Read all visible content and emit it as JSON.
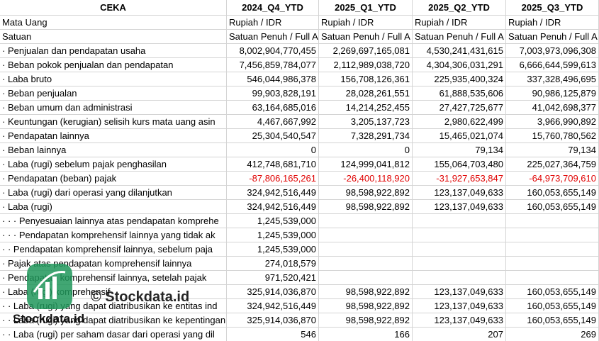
{
  "table": {
    "header": [
      "CEKA",
      "2024_Q4_YTD",
      "2025_Q1_YTD",
      "2025_Q2_YTD",
      "2025_Q3_YTD"
    ],
    "rows": [
      [
        "Mata Uang",
        "Rupiah / IDR",
        "Rupiah / IDR",
        "Rupiah / IDR",
        "Rupiah / IDR"
      ],
      [
        "Satuan",
        "Satuan Penuh / Full A",
        "Satuan Penuh / Full A",
        "Satuan Penuh / Full A",
        "Satuan Penuh / Full A"
      ],
      [
        "· Penjualan dan pendapatan usaha",
        "8,002,904,770,455",
        "2,269,697,165,081",
        "4,530,241,431,615",
        "7,003,973,096,308"
      ],
      [
        "· Beban pokok penjualan dan pendapatan",
        "7,456,859,784,077",
        "2,112,989,038,720",
        "4,304,306,031,291",
        "6,666,644,599,613"
      ],
      [
        "· Laba bruto",
        "546,044,986,378",
        "156,708,126,361",
        "225,935,400,324",
        "337,328,496,695"
      ],
      [
        "· Beban penjualan",
        "99,903,828,191",
        "28,028,261,551",
        "61,888,535,606",
        "90,986,125,879"
      ],
      [
        "· Beban umum dan administrasi",
        "63,164,685,016",
        "14,214,252,455",
        "27,427,725,677",
        "41,042,698,377"
      ],
      [
        "· Keuntungan (kerugian) selisih kurs mata uang asin",
        "4,467,667,992",
        "3,205,137,723",
        "2,980,622,499",
        "3,966,990,892"
      ],
      [
        "· Pendapatan lainnya",
        "25,304,540,547",
        "7,328,291,734",
        "15,465,021,074",
        "15,760,780,562"
      ],
      [
        "· Beban lainnya",
        "0",
        "0",
        "79,134",
        "79,134"
      ],
      [
        "· Laba (rugi) sebelum pajak penghasilan",
        "412,748,681,710",
        "124,999,041,812",
        "155,064,703,480",
        "225,027,364,759"
      ],
      [
        "· Pendapatan (beban) pajak",
        "-87,806,165,261",
        "-26,400,118,920",
        "-31,927,653,847",
        "-64,973,709,610"
      ],
      [
        "· Laba (rugi) dari operasi yang dilanjutkan",
        "324,942,516,449",
        "98,598,922,892",
        "123,137,049,633",
        "160,053,655,149"
      ],
      [
        "· Laba (rugi)",
        "324,942,516,449",
        "98,598,922,892",
        "123,137,049,633",
        "160,053,655,149"
      ],
      [
        "· · · Penyesuaian lainnya atas pendapatan komprehe",
        "1,245,539,000",
        null,
        null,
        null
      ],
      [
        "· · · Pendapatan komprehensif lainnya yang tidak ak",
        "1,245,539,000",
        null,
        null,
        null
      ],
      [
        "· · Pendapatan komprehensif lainnya, sebelum paja",
        "1,245,539,000",
        null,
        null,
        null
      ],
      [
        "· Pajak atas pendapatan komprehensif lainnya",
        "274,018,579",
        null,
        null,
        null
      ],
      [
        "· Pendapatan komprehensif lainnya, setelah pajak",
        "971,520,421",
        null,
        null,
        null
      ],
      [
        "· Laba (rugi) komprehensif",
        "325,914,036,870",
        "98,598,922,892",
        "123,137,049,633",
        "160,053,655,149"
      ],
      [
        "· · Laba (rugi) yang dapat diatribusikan ke entitas ind",
        "324,942,516,449",
        "98,598,922,892",
        "123,137,049,633",
        "160,053,655,149"
      ],
      [
        "· · Laba (rugi) yang dapat diatribusikan ke kepentingan",
        "325,914,036,870",
        "98,598,922,892",
        "123,137,049,633",
        "160,053,655,149"
      ],
      [
        "· · Laba (rugi) per saham dasar dari operasi yang dil",
        "546",
        "166",
        "207",
        "269"
      ]
    ]
  },
  "watermark": {
    "caption": "© Stockdata.id",
    "logo_text": "Stockdata.id"
  }
}
